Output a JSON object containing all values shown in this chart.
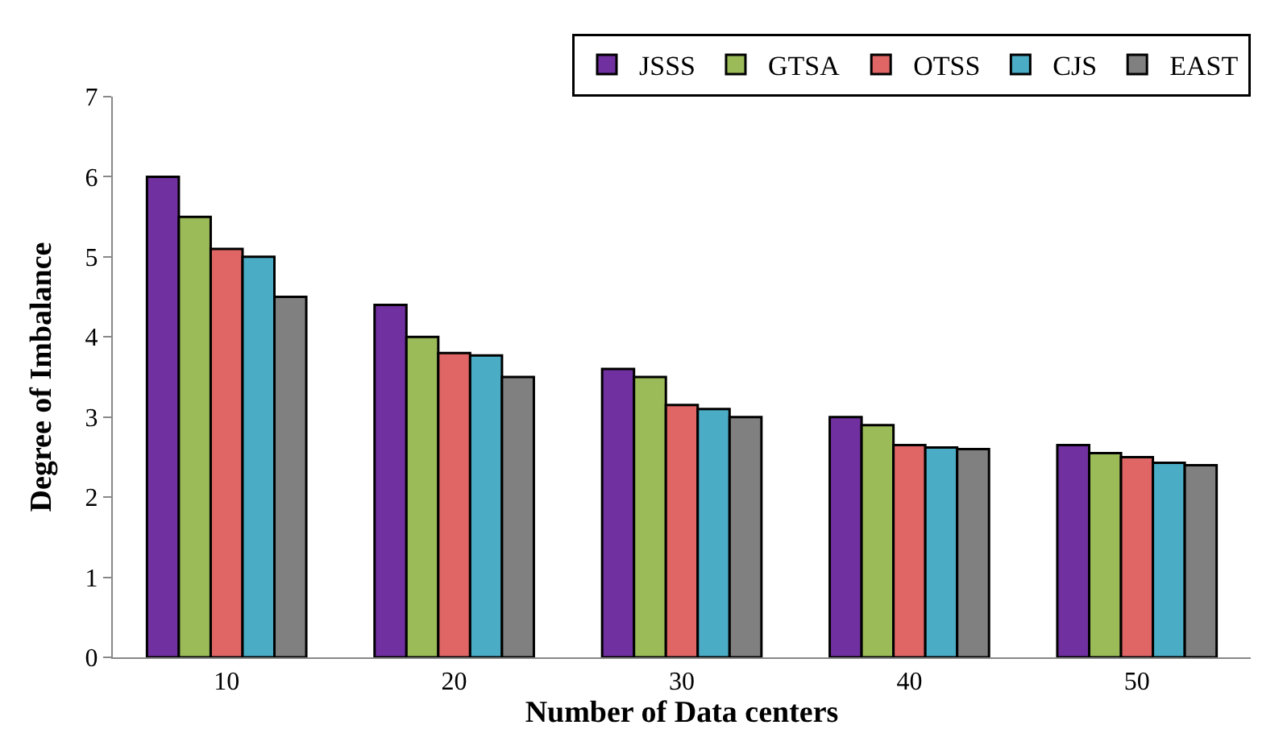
{
  "chart_data": {
    "type": "bar",
    "xlabel": "Number of Data centers",
    "ylabel": "Degree of Imbalance",
    "categories": [
      "10",
      "20",
      "30",
      "40",
      "50"
    ],
    "series": [
      {
        "name": "JSSS",
        "color": "#7030a0",
        "values": [
          6.0,
          4.4,
          3.6,
          3.0,
          2.65
        ]
      },
      {
        "name": "GTSA",
        "color": "#9bbb59",
        "values": [
          5.5,
          4.0,
          3.5,
          2.9,
          2.55
        ]
      },
      {
        "name": "OTSS",
        "color": "#e06666",
        "values": [
          5.1,
          3.8,
          3.15,
          2.65,
          2.5
        ]
      },
      {
        "name": "CJS",
        "color": "#4bacc6",
        "values": [
          5.0,
          3.77,
          3.1,
          2.62,
          2.43
        ]
      },
      {
        "name": "EAST",
        "color": "#808080",
        "values": [
          4.5,
          3.5,
          3.0,
          2.6,
          2.4
        ]
      }
    ],
    "ylim": [
      0,
      7
    ],
    "yticks": [
      0,
      1,
      2,
      3,
      4,
      5,
      6,
      7
    ],
    "legend": "top right"
  }
}
